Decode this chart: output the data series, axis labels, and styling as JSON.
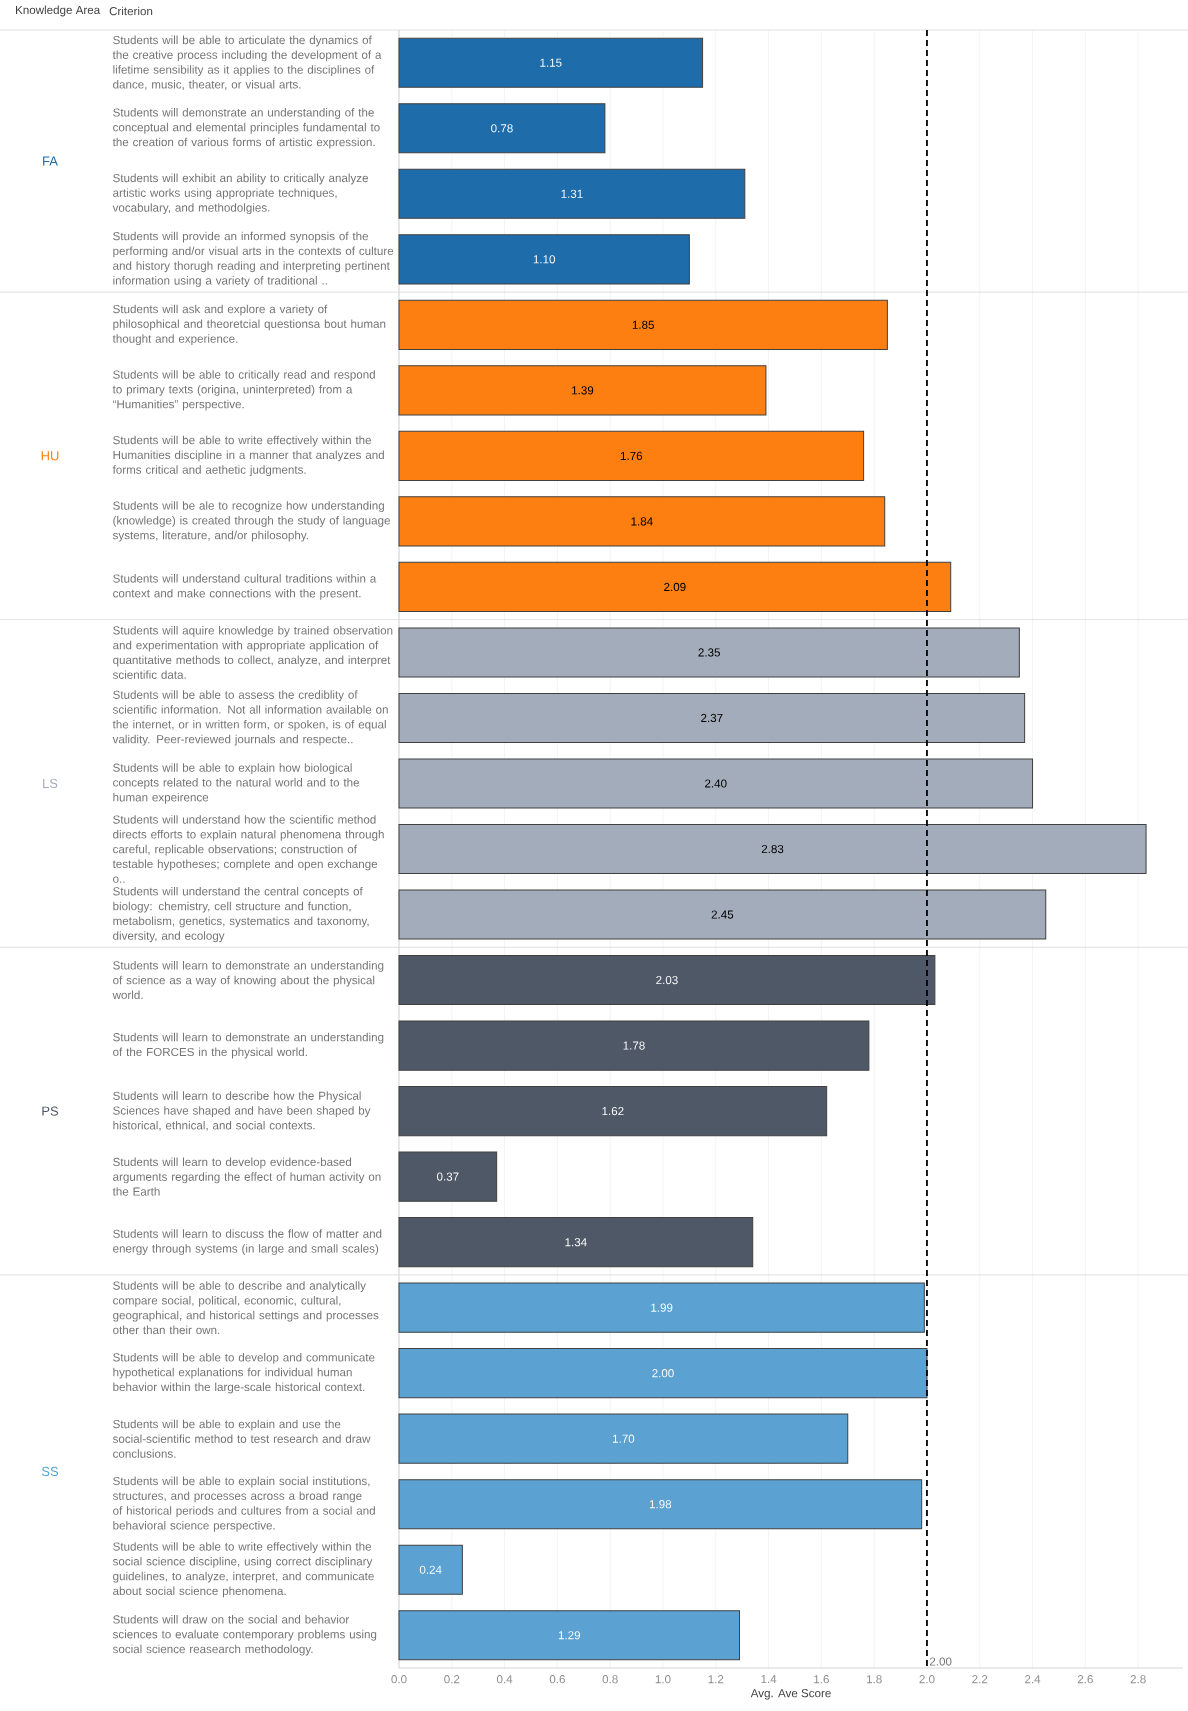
{
  "chart_data": {
    "type": "bar",
    "orientation": "horizontal",
    "legend_title": "Knowledge Area",
    "ylabel": "Criterion",
    "xlabel": "Avg. Ave Score",
    "categories": [
      "Students will be able to articulate the dynamics of the creative process including the development of a lifetime sensibility as it applies to the disciplines of dance, music, theater, or visual arts.",
      "Students will demonstrate an understanding of the conceptual and elemental principles fundamental to the creation of various forms of artistic expression.",
      "Students will exhibit an ability to critically analyze artistic works using appropriate techniques, vocabulary, and methodolgies.",
      "Students will provide an informed synopsis of the performing and/or visual arts in the contexts of culture and history thorugh reading and interpreting pertinent information using a variety of traditional ..",
      "Students will ask and explore a variety of philosophical and theoretcial questionsa bout human thought and experience.",
      "Students will be able to critically read and respond to primary texts (origina, uninterpreted) from a “Humanities” perspective.",
      "Students will be able to write effectively within the Humanities discipline in a manner that analyzes and forms critical and aethetic judgments.",
      "Students will be ale to recognize how understanding (knowledge) is created through the study of language systems, literature, and/or philosophy.",
      "Students will understand cultural traditions within a context and make connections with the present.",
      "Students will aquire knowledge by trained observation and experimentation with appropriate application of quantitative methods to collect, analyze, and interpret scientific data.",
      "Students will be able to assess the crediblity of scientific information.  Not all information available on the internet, or in written form, or spoken, is of equal validity.  Peer-reviewed journals and respecte..",
      "Students will be able to explain how biological concepts related to the natural world and to the human expeirence",
      "Students will understand how the scientific method directs efforts to explain natural phenomena through careful, replicable observations; construction of testable hypotheses; complete and open exchange o..",
      "Students will understand the central concepts of biology:  chemistry, cell structure and function, metabolism, genetics, systematics and taxonomy, diversity, and ecology",
      "Students will learn to demonstrate an understanding of science as a way of knowing about the physical world.",
      "Students will learn to demonstrate an understanding of the FORCES in the physical world.",
      "Students will learn to describe how the Physical Sciences have shaped and have been shaped by historical, ethnical, and social contexts.",
      "Students will learn to develop evidence-based arguments regarding the effect of human activity on the Earth",
      "Students will learn to discuss the flow of matter and energy through systems (in large and small scales)",
      "Students will be able to describe and analytically compare social, political, economic, cultural, geographical, and historical settings and processes other than their own.",
      "Students will be able to develop and communicate hypothetical explanations for individual human behavior within the large-scale historical context.",
      "Students will be able to explain and use the social-scientific method to test research and draw conclusions.",
      "Students will be able to explain social institutions, structures, and processes across a broad range of historical periods and cultures from a social and behavioral science perspective.",
      "Students will be able to write effectively within the social science discipline, using correct disciplinary guidelines, to analyze, interpret, and communicate about social science phenomena.",
      "Students will draw on the social and behavior sciences to evaluate contemporary problems using social science reasearch methodology."
    ],
    "series": [
      {
        "name": "FA",
        "color": "#1f6cab",
        "values": [
          1.15,
          0.78,
          1.31,
          1.1,
          null,
          null,
          null,
          null,
          null,
          null,
          null,
          null,
          null,
          null,
          null,
          null,
          null,
          null,
          null,
          null,
          null,
          null,
          null,
          null,
          null
        ],
        "value_labels": [
          "1.15",
          "0.78",
          "1.31",
          "1.10",
          null,
          null,
          null,
          null,
          null,
          null,
          null,
          null,
          null,
          null,
          null,
          null,
          null,
          null,
          null,
          null,
          null,
          null,
          null,
          null,
          null
        ]
      },
      {
        "name": "HU",
        "color": "#fd7f12",
        "values": [
          null,
          null,
          null,
          null,
          1.85,
          1.39,
          1.76,
          1.84,
          2.09,
          null,
          null,
          null,
          null,
          null,
          null,
          null,
          null,
          null,
          null,
          null,
          null,
          null,
          null,
          null,
          null
        ],
        "value_labels": [
          null,
          null,
          null,
          null,
          "1.85",
          "1.39",
          "1.76",
          "1.84",
          "2.09",
          null,
          null,
          null,
          null,
          null,
          null,
          null,
          null,
          null,
          null,
          null,
          null,
          null,
          null,
          null,
          null
        ]
      },
      {
        "name": "LS",
        "color": "#a3acba",
        "values": [
          null,
          null,
          null,
          null,
          null,
          null,
          null,
          null,
          null,
          2.35,
          2.37,
          2.4,
          2.83,
          2.45,
          null,
          null,
          null,
          null,
          null,
          null,
          null,
          null,
          null,
          null,
          null
        ],
        "value_labels": [
          null,
          null,
          null,
          null,
          null,
          null,
          null,
          null,
          null,
          "2.35",
          "2.37",
          "2.40",
          "2.83",
          "2.45",
          null,
          null,
          null,
          null,
          null,
          null,
          null,
          null,
          null,
          null,
          null
        ]
      },
      {
        "name": "PS",
        "color": "#4f5867",
        "values": [
          null,
          null,
          null,
          null,
          null,
          null,
          null,
          null,
          null,
          null,
          null,
          null,
          null,
          null,
          2.03,
          1.78,
          1.62,
          0.37,
          1.34,
          null,
          null,
          null,
          null,
          null,
          null
        ],
        "value_labels": [
          null,
          null,
          null,
          null,
          null,
          null,
          null,
          null,
          null,
          null,
          null,
          null,
          null,
          null,
          "2.03",
          "1.78",
          "1.62",
          "0.37",
          "1.34",
          null,
          null,
          null,
          null,
          null,
          null
        ]
      },
      {
        "name": "SS",
        "color": "#5ba2d2",
        "values": [
          null,
          null,
          null,
          null,
          null,
          null,
          null,
          null,
          null,
          null,
          null,
          null,
          null,
          null,
          null,
          null,
          null,
          null,
          null,
          1.99,
          2.0,
          1.7,
          1.98,
          0.24,
          1.29
        ],
        "value_labels": [
          null,
          null,
          null,
          null,
          null,
          null,
          null,
          null,
          null,
          null,
          null,
          null,
          null,
          null,
          null,
          null,
          null,
          null,
          null,
          "1.99",
          "2.00",
          "1.70",
          "1.98",
          "0.24",
          "1.29"
        ]
      }
    ],
    "xlim": [
      0,
      2.97
    ],
    "xticks": [
      {
        "value": 0,
        "label": "0.0"
      },
      0.2,
      0.4,
      0.6,
      0.8,
      {
        "value": 1,
        "label": "1.0"
      },
      1.2,
      1.4,
      1.6,
      1.8,
      {
        "value": 2,
        "label": "2.0"
      },
      2.2,
      2.4,
      2.6,
      2.8
    ],
    "grid": "x",
    "ref_lines": [
      {
        "axis": "x",
        "value": 2.0,
        "label": "2.00",
        "line_style": "dashed",
        "color": "#000000"
      }
    ]
  }
}
